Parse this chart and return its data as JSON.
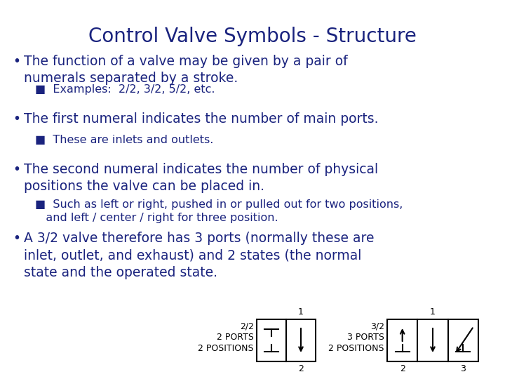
{
  "title": "Control Valve Symbols - Structure",
  "title_color": "#1a237e",
  "title_fontsize": 20,
  "background_color": "#ffffff",
  "text_color": "#1a237e",
  "bullet_color": "#1a237e",
  "bullet1_main": "The function of a valve may be given by a pair of\nnumerals separated by a stroke.",
  "bullet1_sub": "■  Examples:  2/2, 3/2, 5/2, etc.",
  "bullet2_main": "The first numeral indicates the number of main ports.",
  "bullet2_sub": "■  These are inlets and outlets.",
  "bullet3_main": "The second numeral indicates the number of physical\npositions the valve can be placed in.",
  "bullet3_sub": "■  Such as left or right, pushed in or pulled out for two positions,\n   and left / center / right for three position.",
  "bullet4_main": "A 3/2 valve therefore has 3 ports (normally these are\ninlet, outlet, and exhaust) and 2 states (the normal\nstate and the operated state.",
  "main_fontsize": 13.5,
  "sub_fontsize": 11.5,
  "valve_text_color": "#000000",
  "valve_text_fontsize": 9
}
